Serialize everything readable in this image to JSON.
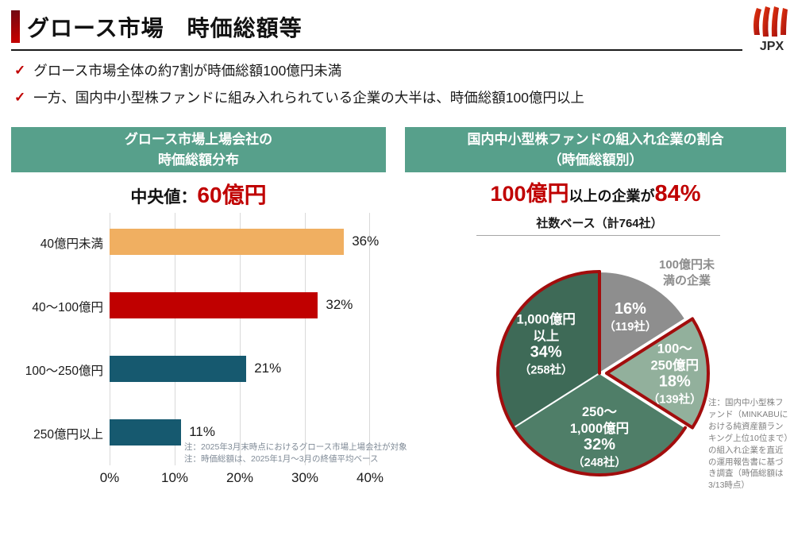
{
  "slide": {
    "title": "グロース市場　時価総額等",
    "logo_text": "JPX",
    "bullets": [
      "グロース市場全体の約7割が時価総額100億円未満",
      "一方、国内中小型株ファンドに組み入れられている企業の大半は、時価総額100億円以上"
    ]
  },
  "left_panel": {
    "header_line1": "グロース市場上場会社の",
    "header_line2": "時価総額分布",
    "median_label": "中央値：",
    "median_value": "60億円",
    "notes": [
      "注：2025年3月末時点におけるグロース市場上場会社が対象",
      "注：時価総額は、2025年1月～3月の終値平均ベース"
    ]
  },
  "right_panel": {
    "header_line1": "国内中小型株ファンドの組入れ企業の割合",
    "header_line2": "（時価総額別）",
    "headline_prefix": "100億円",
    "headline_middle": "以上の企業が",
    "headline_value": "84%",
    "subtitle": "社数ベース（計764社）",
    "callout_line1": "100億円未",
    "callout_line2": "満の企業",
    "note": "注：国内中小型株ファンド（MINKABUにおける純資産額ランキング上位10位まで）の組入れ企業を直近の運用報告書に基づき調査（時価総額は3/13時点）"
  },
  "colors": {
    "header_green": "#57a08b",
    "accent_red": "#c00000",
    "highlight_outline": "#a20d0d",
    "note_gray": "#7f8a96"
  },
  "chart_data": [
    {
      "type": "bar",
      "orientation": "horizontal",
      "title": "グロース市場上場会社の時価総額分布",
      "categories": [
        "40億円未満",
        "40～100億円",
        "100～250億円",
        "250億円以上"
      ],
      "values": [
        36,
        32,
        21,
        11
      ],
      "value_labels": [
        "36%",
        "32%",
        "21%",
        "11%"
      ],
      "bar_colors": [
        "#f0af61",
        "#c00000",
        "#16596f",
        "#16596f"
      ],
      "xlabel_ticks": [
        "0%",
        "10%",
        "20%",
        "30%",
        "40%"
      ],
      "xlim": [
        0,
        40
      ],
      "grid": true,
      "median": "60億円"
    },
    {
      "type": "pie",
      "title": "社数ベース（計764社）",
      "total_companies": 764,
      "start_at": "12時方向から時計回り",
      "slices": [
        {
          "name": "100億円未満の企業",
          "percent": 16,
          "pct_label": "16%",
          "count_label": "（119社）",
          "count": 119,
          "color": "#8e8e8e",
          "label_lines": [],
          "exploded": false,
          "highlighted": false
        },
        {
          "name": "100～250億円",
          "percent": 18,
          "pct_label": "18%",
          "count_label": "（139社）",
          "count": 139,
          "color": "#92b09c",
          "label_lines": [
            "100～",
            "250億円"
          ],
          "exploded": true,
          "highlighted": true
        },
        {
          "name": "250～1,000億円",
          "percent": 32,
          "pct_label": "32%",
          "count_label": "（248社）",
          "count": 248,
          "color": "#4f7e68",
          "label_lines": [
            "250～",
            "1,000億円"
          ],
          "exploded": false,
          "highlighted": true
        },
        {
          "name": "1,000億円以上",
          "percent": 34,
          "pct_label": "34%",
          "count_label": "（258社）",
          "count": 258,
          "color": "#3e6a57",
          "label_lines": [
            "1,000億円",
            "以上"
          ],
          "exploded": false,
          "highlighted": false,
          "highlighted_note": true
        }
      ],
      "highlight": {
        "outline_color": "#a20d0d",
        "meaning": "100億円以上の企業＝84%"
      },
      "legend_position": "inside"
    }
  ]
}
